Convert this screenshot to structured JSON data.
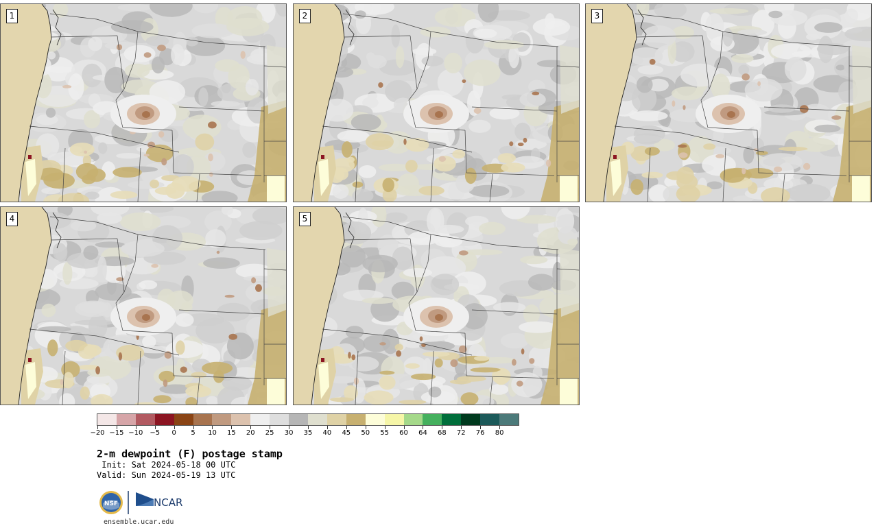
{
  "title": "2-m dewpoint (F) postage stamp",
  "init": "Init: Sat 2024-05-18 00 UTC",
  "valid": "Valid: Sun 2024-05-19 13 UTC",
  "website": "ensemble.ucar.edu",
  "logos": {
    "nsf_text": "NSF",
    "ncar_text": "NCAR"
  },
  "members": [
    {
      "label": "1"
    },
    {
      "label": "2"
    },
    {
      "label": "3"
    },
    {
      "label": "4"
    },
    {
      "label": "5"
    }
  ],
  "colorbar": {
    "tick_labels": [
      "−20",
      "−15",
      "−10",
      "−5",
      "0",
      "5",
      "10",
      "15",
      "20",
      "25",
      "30",
      "35",
      "40",
      "45",
      "50",
      "55",
      "60",
      "64",
      "68",
      "72",
      "76",
      "80"
    ],
    "colors": [
      "#f4e7e7",
      "#d6a5a8",
      "#b25a61",
      "#8c1522",
      "#8a4415",
      "#a8744f",
      "#c09a80",
      "#dcc2ae",
      "#efefef",
      "#dedede",
      "#b6b6b6",
      "#dfdfcf",
      "#dfd2a6",
      "#c7b070",
      "#fdfdd9",
      "#f6f6a8",
      "#a5d98a",
      "#45b05e",
      "#006e3b",
      "#003a1e",
      "#1c5a5a",
      "#4c7a7a"
    ]
  }
}
